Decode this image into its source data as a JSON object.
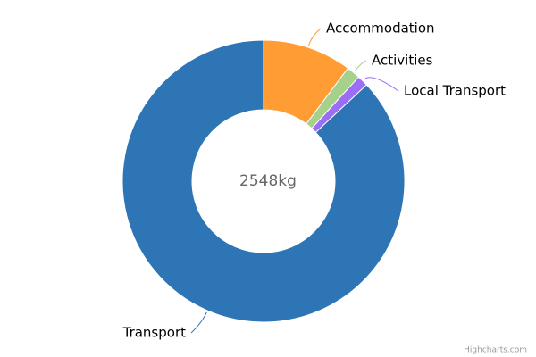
{
  "chart_data": {
    "type": "pie",
    "categories": [
      "Accommodation",
      "Activities",
      "Local Transport",
      "Transport"
    ],
    "values": [
      260,
      40,
      32,
      2216
    ],
    "colors": [
      "#ff9c33",
      "#a6d18b",
      "#9c6ef5",
      "#2e75b6"
    ],
    "center_label": "2548kg",
    "credits": "Highcharts.com"
  }
}
